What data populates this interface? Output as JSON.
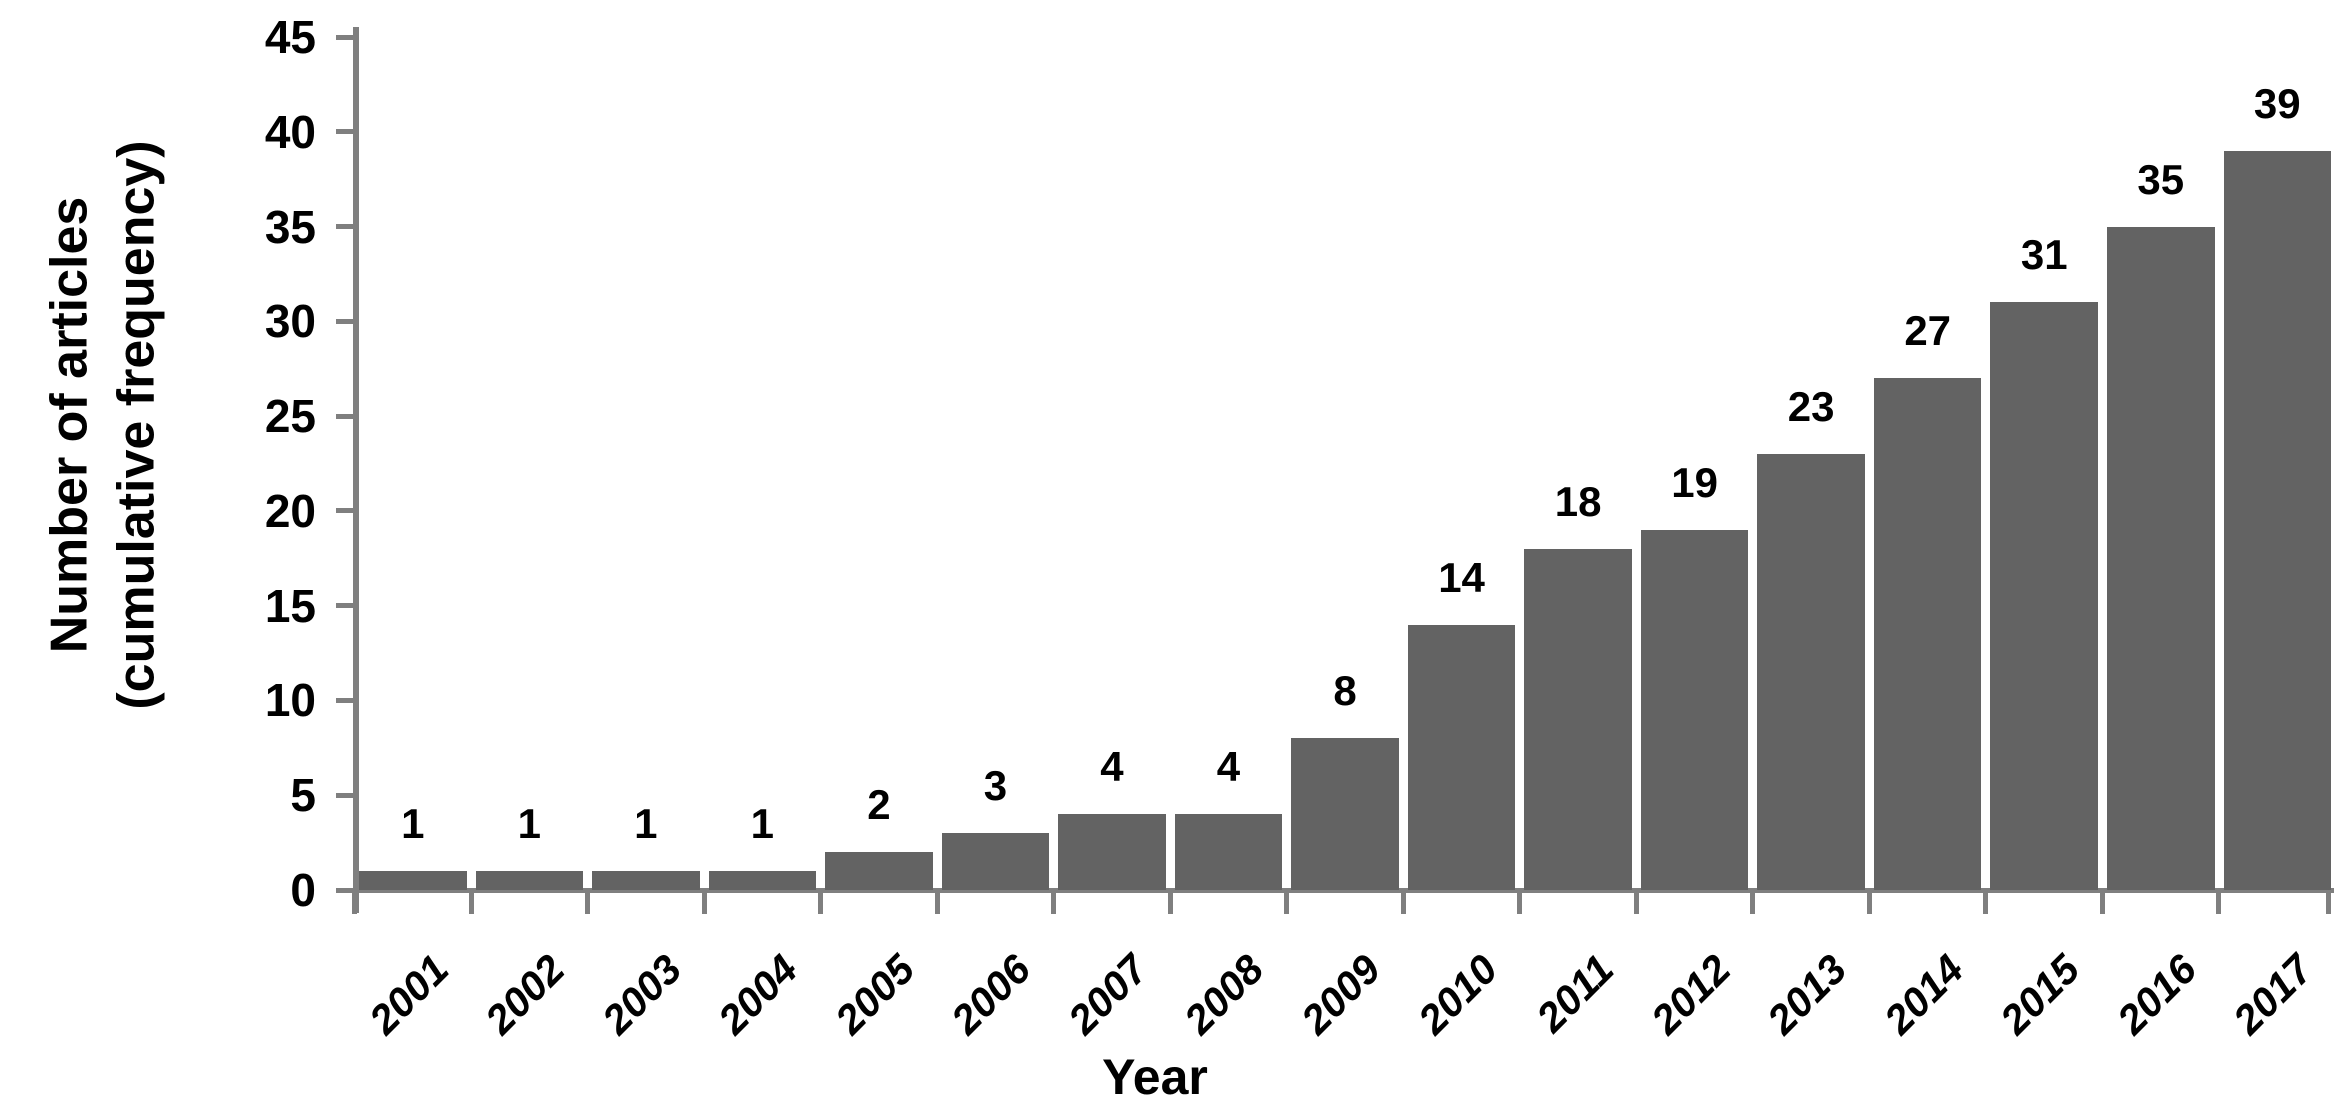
{
  "chart_data": {
    "type": "bar",
    "title": "",
    "categories": [
      "2001",
      "2002",
      "2003",
      "2004",
      "2005",
      "2006",
      "2007",
      "2008",
      "2009",
      "2010",
      "2011",
      "2012",
      "2013",
      "2014",
      "2015",
      "2016",
      "2017"
    ],
    "values": [
      1,
      1,
      1,
      1,
      2,
      3,
      4,
      4,
      8,
      14,
      18,
      19,
      23,
      27,
      31,
      35,
      39
    ],
    "xlabel": "Year",
    "ylabel_lines": [
      "Number of articles",
      "(cumulative frequency)"
    ],
    "ylim": [
      0,
      45
    ],
    "ytick_step": 5,
    "ytick_labels": [
      "0",
      "5",
      "10",
      "15",
      "20",
      "25",
      "30",
      "35",
      "40",
      "45"
    ],
    "grid": false,
    "legend_position": "none",
    "bar_color": "#636363",
    "axis_color": "#7f7f7f",
    "text_color": "#000000"
  }
}
